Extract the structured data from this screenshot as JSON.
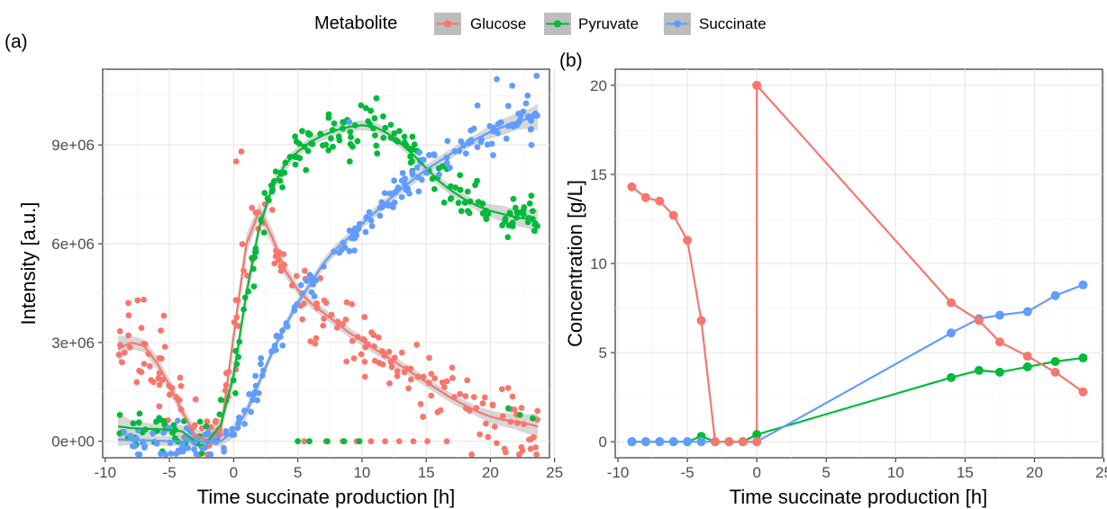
{
  "legend": {
    "title": "Metabolite",
    "items": [
      {
        "name": "Glucose",
        "color": "#F8766D"
      },
      {
        "name": "Pyruvate",
        "color": "#00BA38"
      },
      {
        "name": "Succinate",
        "color": "#619CFF"
      }
    ],
    "key_background": "#bdbdbd"
  },
  "chart_data": [
    {
      "panel": "(a)",
      "type": "scatter",
      "xlabel": "Time succinate production [h]",
      "ylabel": "Intensity [a.u.]",
      "xlim": [
        -10.2,
        24.6
      ],
      "ylim": [
        -500000,
        11300000
      ],
      "xticks": [
        -10,
        -5,
        0,
        5,
        10,
        15,
        20,
        25
      ],
      "xtick_labels": [
        "-10",
        "-5",
        "0",
        "5",
        "10",
        "15",
        "20",
        "25"
      ],
      "yticks": [
        0,
        3000000,
        6000000,
        9000000
      ],
      "ytick_labels": [
        "0e+00",
        "3e+06",
        "6e+06",
        "9e+06"
      ],
      "grid": true,
      "smooth_band_color": "#bdbdbd",
      "series": [
        {
          "name": "Glucose",
          "color": "#F8766D",
          "smooth": {
            "x": [
              -9,
              -8,
              -7,
              -6,
              -5,
              -4,
              -3,
              -2,
              -1,
              0,
              1,
              2,
              3,
              4,
              5,
              6,
              7,
              8,
              9,
              10,
              11,
              12,
              13,
              14,
              15,
              16,
              17,
              18,
              19,
              20,
              21,
              22,
              23,
              23.7
            ],
            "y": [
              2800000,
              3000000,
              2900000,
              2400000,
              1700000,
              900000,
              200000,
              0,
              300000,
              3200000,
              6000000,
              7000000,
              6200000,
              5200000,
              4600000,
              4200000,
              3900000,
              3600000,
              3300000,
              3050000,
              2800000,
              2550000,
              2300000,
              2050000,
              1800000,
              1550000,
              1300000,
              1100000,
              900000,
              750000,
              650000,
              600000,
              520000,
              450000
            ]
          },
          "band": [
            400000,
            200000,
            200000,
            200000,
            200000,
            200000,
            200000,
            200000,
            250000,
            300000,
            300000,
            250000,
            250000,
            200000,
            150000,
            150000,
            150000,
            150000,
            150000,
            150000,
            150000,
            150000,
            150000,
            150000,
            150000,
            150000,
            150000,
            150000,
            150000,
            200000,
            200000,
            250000,
            300000,
            400000
          ],
          "scatter_sd": 550000,
          "extra_points": [
            {
              "x": 5.5,
              "y": 0
            },
            {
              "x": 7.2,
              "y": 0
            },
            {
              "x": 8.5,
              "y": 0
            },
            {
              "x": 9.6,
              "y": 0
            },
            {
              "x": 10.7,
              "y": 0
            },
            {
              "x": 11.8,
              "y": 0
            },
            {
              "x": 12.9,
              "y": 0
            },
            {
              "x": 14.0,
              "y": 0
            },
            {
              "x": 15.1,
              "y": 0
            },
            {
              "x": 16.6,
              "y": 0
            },
            {
              "x": 0.2,
              "y": 8500000
            },
            {
              "x": 0.6,
              "y": 8800000
            },
            {
              "x": -8.2,
              "y": 4200000
            },
            {
              "x": -7.0,
              "y": 4300000
            }
          ]
        },
        {
          "name": "Pyruvate",
          "color": "#00BA38",
          "smooth": {
            "x": [
              -9,
              -8,
              -7,
              -6,
              -5,
              -4,
              -3,
              -2,
              -1,
              0,
              1,
              2,
              3,
              4,
              5,
              6,
              7,
              8,
              9,
              10,
              11,
              12,
              13,
              14,
              15,
              16,
              17,
              18,
              19,
              20,
              21,
              22,
              23,
              23.7
            ],
            "y": [
              450000,
              400000,
              380000,
              370000,
              350000,
              300000,
              0,
              0,
              500000,
              2000000,
              4500000,
              6500000,
              7700000,
              8400000,
              8800000,
              9100000,
              9300000,
              9450000,
              9550000,
              9600000,
              9550000,
              9350000,
              9050000,
              8700000,
              8300000,
              7900000,
              7600000,
              7350000,
              7150000,
              7000000,
              6900000,
              6800000,
              6750000,
              6650000
            ]
          },
          "band": [
            400000,
            250000,
            200000,
            150000,
            150000,
            200000,
            200000,
            200000,
            250000,
            300000,
            300000,
            250000,
            200000,
            200000,
            150000,
            150000,
            150000,
            150000,
            150000,
            150000,
            150000,
            150000,
            150000,
            150000,
            150000,
            150000,
            150000,
            150000,
            150000,
            200000,
            250000,
            250000,
            300000,
            400000
          ],
          "scatter_sd": 350000,
          "extra_points": [
            {
              "x": 5.0,
              "y": 0
            },
            {
              "x": 5.9,
              "y": 0
            },
            {
              "x": 7.3,
              "y": 0
            },
            {
              "x": 8.6,
              "y": 0
            },
            {
              "x": 9.8,
              "y": 0
            },
            {
              "x": 21.4,
              "y": 1000000
            },
            {
              "x": 22.3,
              "y": 800000
            },
            {
              "x": 23.3,
              "y": 700000
            }
          ]
        },
        {
          "name": "Succinate",
          "color": "#619CFF",
          "smooth": {
            "x": [
              -9,
              -8,
              -7,
              -6,
              -5,
              -4,
              -3,
              -2,
              -1,
              0,
              1,
              2,
              3,
              4,
              5,
              6,
              7,
              8,
              9,
              10,
              11,
              12,
              13,
              14,
              15,
              16,
              17,
              18,
              19,
              20,
              21,
              22,
              23,
              23.7
            ],
            "y": [
              50000,
              40000,
              30000,
              20000,
              0,
              0,
              0,
              0,
              0,
              300000,
              900000,
              1800000,
              2700000,
              3500000,
              4200000,
              4800000,
              5400000,
              5850000,
              6200000,
              6600000,
              6950000,
              7300000,
              7650000,
              7950000,
              8250000,
              8500000,
              8750000,
              9000000,
              9200000,
              9400000,
              9550000,
              9700000,
              9800000,
              9850000
            ]
          },
          "band": [
            200000,
            150000,
            150000,
            150000,
            150000,
            150000,
            150000,
            150000,
            150000,
            200000,
            200000,
            150000,
            150000,
            150000,
            150000,
            150000,
            150000,
            150000,
            150000,
            150000,
            150000,
            150000,
            150000,
            150000,
            150000,
            150000,
            150000,
            150000,
            150000,
            200000,
            250000,
            250000,
            300000,
            400000
          ],
          "scatter_sd": 260000,
          "extra_points": [
            {
              "x": 22.9,
              "y": 10500000
            },
            {
              "x": 23.6,
              "y": 11100000
            },
            {
              "x": 21.7,
              "y": 10800000
            },
            {
              "x": 9.0,
              "y": 9700000
            },
            {
              "x": 20.5,
              "y": 11000000
            },
            {
              "x": 23.2,
              "y": 9000000
            },
            {
              "x": 19.0,
              "y": 10200000
            }
          ]
        }
      ]
    },
    {
      "panel": "(b)",
      "type": "line",
      "xlabel": "Time succinate production [h]",
      "ylabel": "Concentration [g/L]",
      "xlim": [
        -10.2,
        24.9
      ],
      "ylim": [
        -0.9,
        20.9
      ],
      "xticks": [
        -10,
        -5,
        0,
        5,
        10,
        15,
        20,
        25
      ],
      "xtick_labels": [
        "-10",
        "-5",
        "0",
        "5",
        "10",
        "15",
        "20",
        "25"
      ],
      "yticks": [
        0,
        5,
        10,
        15,
        20
      ],
      "ytick_labels": [
        "0",
        "5",
        "10",
        "15",
        "20"
      ],
      "grid": true,
      "series": [
        {
          "name": "Glucose",
          "color": "#F8766D",
          "x": [
            -9,
            -8,
            -7,
            -6,
            -5,
            -4,
            -3,
            -2,
            -1,
            0,
            0,
            14,
            16,
            17.5,
            19.5,
            21.5,
            23.5
          ],
          "y": [
            14.3,
            13.7,
            13.5,
            12.7,
            11.3,
            6.8,
            0.0,
            0.0,
            0.0,
            0.0,
            20.0,
            7.8,
            6.8,
            5.6,
            4.8,
            3.9,
            2.8
          ]
        },
        {
          "name": "Pyruvate",
          "color": "#00BA38",
          "x": [
            -9,
            -8,
            -7,
            -6,
            -5,
            -4,
            -3,
            -2,
            -1,
            0,
            14,
            16,
            17.5,
            19.5,
            21.5,
            23.5
          ],
          "y": [
            0.0,
            0.0,
            0.0,
            0.0,
            0.0,
            0.3,
            0.0,
            0.0,
            0.0,
            0.4,
            3.6,
            4.0,
            3.9,
            4.2,
            4.5,
            4.7
          ]
        },
        {
          "name": "Succinate",
          "color": "#619CFF",
          "x": [
            -9,
            -8,
            -7,
            -6,
            -5,
            -4,
            -3,
            -2,
            -1,
            0,
            14,
            16,
            17.5,
            19.5,
            21.5,
            23.5
          ],
          "y": [
            0.0,
            0.0,
            0.0,
            0.0,
            0.0,
            0.0,
            0.0,
            0.0,
            0.0,
            0.0,
            6.1,
            6.9,
            7.1,
            7.3,
            8.2,
            8.8
          ]
        }
      ]
    }
  ]
}
